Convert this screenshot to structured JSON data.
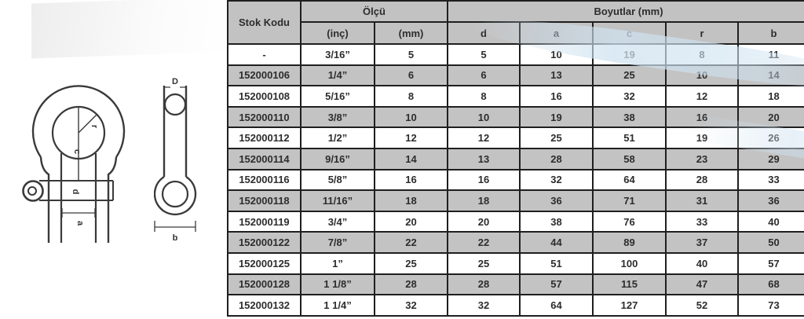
{
  "document_title": "Bow shackle dimensions specification table",
  "colors": {
    "header_fill": "#c2c2c2",
    "row_shade": "#c3c3c3",
    "row_plain": "#ffffff",
    "border": "#1f1f1f",
    "text": "#2d2d2d",
    "watermark_blue": "#cfe2f0"
  },
  "diagram": {
    "front": {
      "radius_label": "r",
      "center_label": "c",
      "pin_label": "d",
      "width_label": "a"
    },
    "side": {
      "pin_diameter_label": "D",
      "width_label": "b"
    }
  },
  "table": {
    "header": {
      "stok_kodu": "Stok Kodu",
      "olcu": "Ölçü",
      "boyutlar": "Boyutlar (mm)",
      "sub": [
        "(inç)",
        "(mm)",
        "d",
        "a",
        "c",
        "r",
        "b"
      ]
    },
    "rows": [
      {
        "stok": "-",
        "inch": "3/16”",
        "mm": "5",
        "d": "5",
        "a": "10",
        "c": "19",
        "r": "8",
        "b": "11"
      },
      {
        "stok": "152000106",
        "inch": "1/4”",
        "mm": "6",
        "d": "6",
        "a": "13",
        "c": "25",
        "r": "10",
        "b": "14"
      },
      {
        "stok": "152000108",
        "inch": "5/16”",
        "mm": "8",
        "d": "8",
        "a": "16",
        "c": "32",
        "r": "12",
        "b": "18"
      },
      {
        "stok": "152000110",
        "inch": "3/8”",
        "mm": "10",
        "d": "10",
        "a": "19",
        "c": "38",
        "r": "16",
        "b": "20"
      },
      {
        "stok": "152000112",
        "inch": "1/2”",
        "mm": "12",
        "d": "12",
        "a": "25",
        "c": "51",
        "r": "19",
        "b": "26"
      },
      {
        "stok": "152000114",
        "inch": "9/16”",
        "mm": "14",
        "d": "13",
        "a": "28",
        "c": "58",
        "r": "23",
        "b": "29"
      },
      {
        "stok": "152000116",
        "inch": "5/8”",
        "mm": "16",
        "d": "16",
        "a": "32",
        "c": "64",
        "r": "28",
        "b": "33"
      },
      {
        "stok": "152000118",
        "inch": "11/16”",
        "mm": "18",
        "d": "18",
        "a": "36",
        "c": "71",
        "r": "31",
        "b": "36"
      },
      {
        "stok": "152000119",
        "inch": "3/4”",
        "mm": "20",
        "d": "20",
        "a": "38",
        "c": "76",
        "r": "33",
        "b": "40"
      },
      {
        "stok": "152000122",
        "inch": "7/8”",
        "mm": "22",
        "d": "22",
        "a": "44",
        "c": "89",
        "r": "37",
        "b": "50"
      },
      {
        "stok": "152000125",
        "inch": "1”",
        "mm": "25",
        "d": "25",
        "a": "51",
        "c": "100",
        "r": "40",
        "b": "57"
      },
      {
        "stok": "152000128",
        "inch": "1 1/8”",
        "mm": "28",
        "d": "28",
        "a": "57",
        "c": "115",
        "r": "47",
        "b": "68"
      },
      {
        "stok": "152000132",
        "inch": "1 1/4”",
        "mm": "32",
        "d": "32",
        "a": "64",
        "c": "127",
        "r": "52",
        "b": "73"
      }
    ]
  }
}
